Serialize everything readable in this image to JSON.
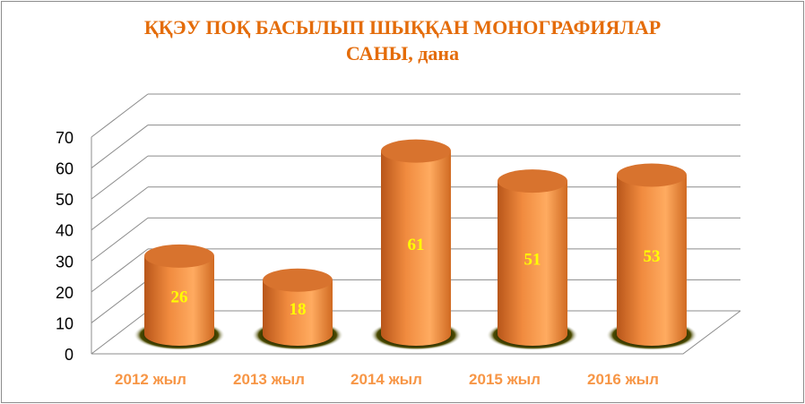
{
  "chart_data": {
    "type": "bar",
    "title_line1": "ҚҚЭУ ПОҚ БАСЫЛЫП ШЫҚҚАН МОНОГРАФИЯЛАР",
    "title_line2": "САНЫ, дана",
    "categories": [
      "2012 жыл",
      "2013 жыл",
      "2014 жыл",
      "2015 жыл",
      "2016 жыл"
    ],
    "values": [
      26,
      18,
      61,
      51,
      53
    ],
    "ylim": [
      0,
      70
    ],
    "yticks": [
      0,
      10,
      20,
      30,
      40,
      50,
      60,
      70
    ],
    "grid": true,
    "style": "3d-cylinder",
    "colors": {
      "bar": "#f79646",
      "bar_dark": "#c0601a",
      "label": "#ffff00",
      "title": "#e46c0a",
      "category": "#f79646"
    }
  }
}
